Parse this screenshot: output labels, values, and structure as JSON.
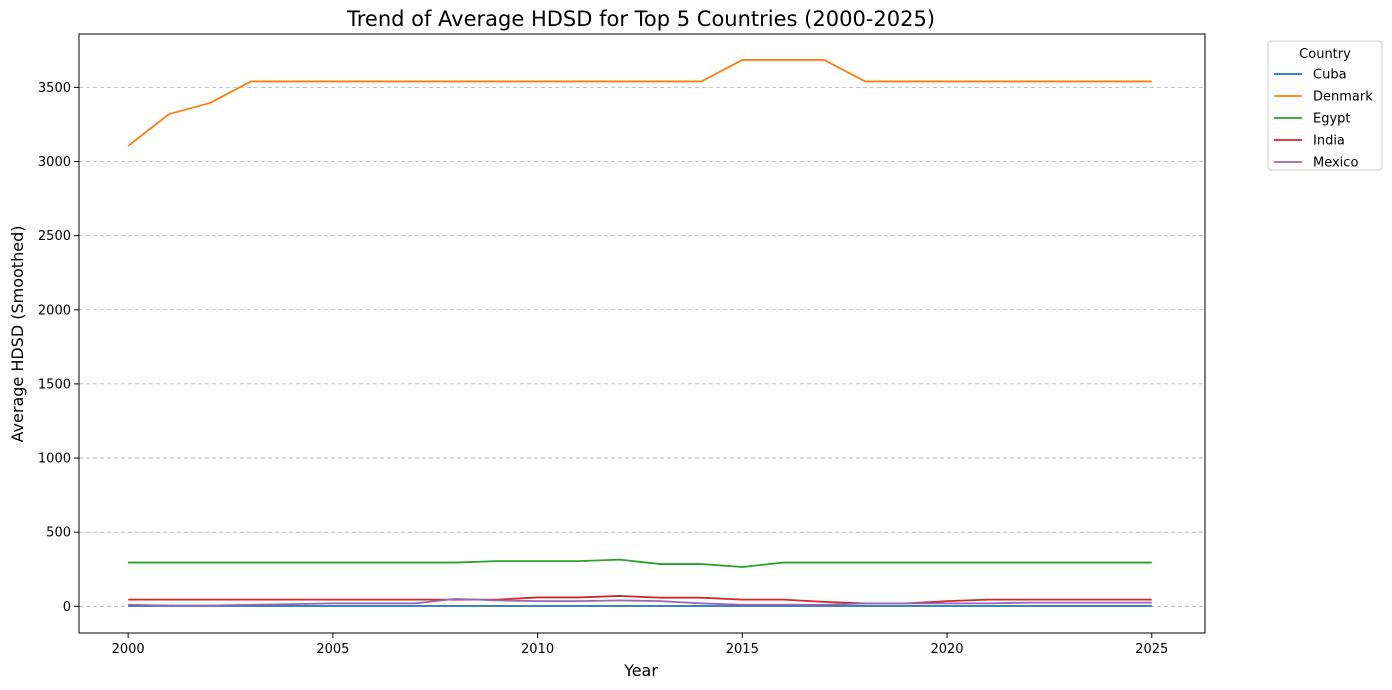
{
  "chart_data": {
    "type": "line",
    "title": "Trend of Average HDSD for Top 5 Countries (2000-2025)",
    "xlabel": "Year",
    "ylabel": "Average HDSD (Smoothed)",
    "xlim": [
      1998.8,
      2026.3
    ],
    "ylim": [
      -180,
      3860
    ],
    "xticks": [
      2000,
      2005,
      2010,
      2015,
      2020,
      2025
    ],
    "yticks": [
      0,
      500,
      1000,
      1500,
      2000,
      2500,
      3000,
      3500
    ],
    "grid": "y-dashed",
    "legend": {
      "title": "Country",
      "placement": "outside-top-right"
    },
    "x": [
      2000,
      2001,
      2002,
      2003,
      2004,
      2005,
      2006,
      2007,
      2008,
      2009,
      2010,
      2011,
      2012,
      2013,
      2014,
      2015,
      2016,
      2017,
      2018,
      2019,
      2020,
      2021,
      2022,
      2023,
      2024,
      2025
    ],
    "series": [
      {
        "name": "Cuba",
        "color": "#1f77b4",
        "values": [
          2,
          2,
          2,
          2,
          2,
          2,
          2,
          2,
          2,
          2,
          2,
          2,
          2,
          2,
          2,
          2,
          2,
          2,
          2,
          2,
          2,
          2,
          2,
          2,
          2,
          2
        ]
      },
      {
        "name": "Denmark",
        "color": "#ff7f0e",
        "values": [
          3105,
          3320,
          3395,
          3540,
          3540,
          3540,
          3540,
          3540,
          3540,
          3540,
          3540,
          3540,
          3540,
          3540,
          3540,
          3685,
          3685,
          3685,
          3540,
          3540,
          3540,
          3540,
          3540,
          3540,
          3540,
          3540
        ]
      },
      {
        "name": "Egypt",
        "color": "#2ca02c",
        "values": [
          295,
          295,
          295,
          295,
          295,
          295,
          295,
          295,
          295,
          305,
          305,
          305,
          315,
          285,
          285,
          265,
          295,
          295,
          295,
          295,
          295,
          295,
          295,
          295,
          295,
          295
        ]
      },
      {
        "name": "India",
        "color": "#d62728",
        "values": [
          45,
          45,
          45,
          45,
          45,
          45,
          45,
          45,
          45,
          45,
          60,
          60,
          70,
          58,
          58,
          45,
          45,
          30,
          20,
          20,
          35,
          45,
          45,
          45,
          45,
          45
        ]
      },
      {
        "name": "Mexico",
        "color": "#9467bd",
        "values": [
          10,
          5,
          5,
          10,
          15,
          20,
          20,
          20,
          50,
          40,
          35,
          35,
          40,
          35,
          20,
          10,
          10,
          10,
          20,
          20,
          20,
          20,
          25,
          25,
          25,
          25
        ]
      }
    ]
  }
}
